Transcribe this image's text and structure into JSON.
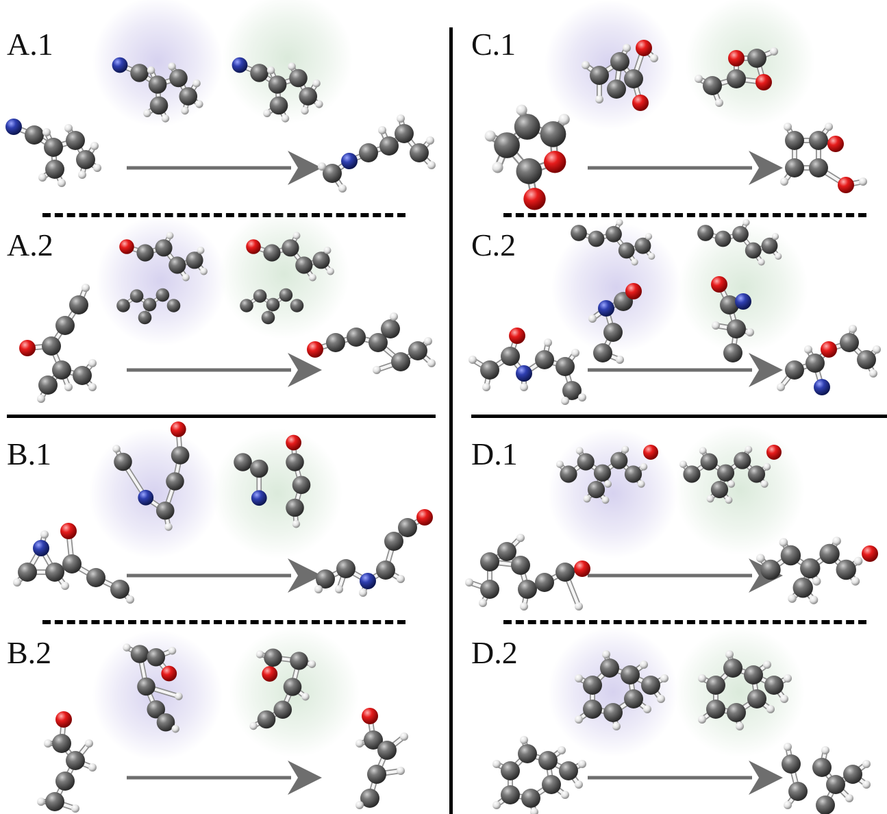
{
  "figure": {
    "panels": [
      {
        "id": "A1",
        "label": "A.1"
      },
      {
        "id": "A2",
        "label": "A.2"
      },
      {
        "id": "B1",
        "label": "B.1"
      },
      {
        "id": "B2",
        "label": "B.2"
      },
      {
        "id": "C1",
        "label": "C.1"
      },
      {
        "id": "C2",
        "label": "C.2"
      },
      {
        "id": "D1",
        "label": "D.1"
      },
      {
        "id": "D2",
        "label": "D.2"
      }
    ],
    "colors": {
      "carbon": "#5a5a5a",
      "hydrogen": "#e6e6e6",
      "nitrogen": "#2b3a9c",
      "oxygen": "#e01818",
      "arrow": "#6e6e6e",
      "glow_left": "#c9c3ea",
      "glow_right": "#cfe3cf",
      "rule": "#000000"
    }
  }
}
